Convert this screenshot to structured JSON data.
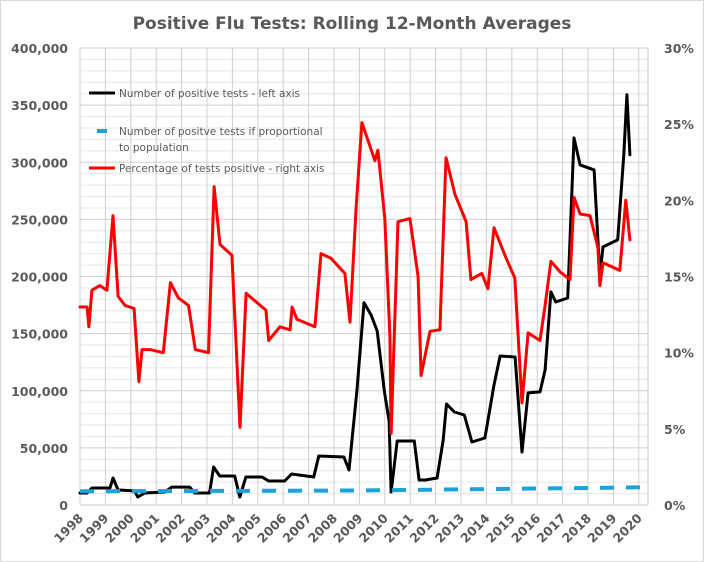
{
  "chart_data": {
    "type": "line",
    "title": "Positive Flu Tests: Rolling 12-Month Averages",
    "xlabel": "",
    "ylabel_left": "",
    "ylabel_right": "",
    "x_range": [
      1998,
      2020.35
    ],
    "y_left_range": [
      0,
      400000
    ],
    "y_right_range": [
      0,
      30
    ],
    "x_ticks": [
      "1998",
      "1999",
      "2000",
      "2001",
      "2002",
      "2003",
      "2004",
      "2005",
      "2006",
      "2007",
      "2008",
      "2009",
      "2010",
      "2011",
      "2012",
      "2013",
      "2014",
      "2015",
      "2016",
      "2017",
      "2018",
      "2019",
      "2020"
    ],
    "y_left_ticks": [
      "0",
      "50,000",
      "100,000",
      "150,000",
      "200,000",
      "250,000",
      "300,000",
      "350,000",
      "400,000"
    ],
    "y_left_tick_values": [
      0,
      50000,
      100000,
      150000,
      200000,
      250000,
      300000,
      350000,
      400000
    ],
    "y_right_ticks": [
      "0%",
      "5%",
      "10%",
      "15%",
      "20%",
      "25%",
      "30%"
    ],
    "y_right_tick_values": [
      0,
      5,
      10,
      15,
      20,
      25,
      30
    ],
    "grid": "major and minor",
    "legend_position": "top-left",
    "series": [
      {
        "name": "Number of positive tests - left axis",
        "axis": "left",
        "color": "#000000",
        "style": "solid",
        "points": [
          [
            1998.0,
            10500
          ],
          [
            1998.28,
            10500
          ],
          [
            1998.47,
            14900
          ],
          [
            1999.18,
            14900
          ],
          [
            1999.3,
            23600
          ],
          [
            1999.5,
            13100
          ],
          [
            2000.15,
            12300
          ],
          [
            2000.27,
            7000
          ],
          [
            2000.55,
            10500
          ],
          [
            2001.34,
            11400
          ],
          [
            2001.61,
            15700
          ],
          [
            2002.32,
            15700
          ],
          [
            2002.52,
            10500
          ],
          [
            2003.1,
            10500
          ],
          [
            2003.26,
            33300
          ],
          [
            2003.5,
            25400
          ],
          [
            2004.09,
            25400
          ],
          [
            2004.29,
            7000
          ],
          [
            2004.53,
            24500
          ],
          [
            2005.16,
            24500
          ],
          [
            2005.43,
            21000
          ],
          [
            2006.06,
            21000
          ],
          [
            2006.33,
            27100
          ],
          [
            2007.2,
            24500
          ],
          [
            2007.4,
            42900
          ],
          [
            2008.39,
            42000
          ],
          [
            2008.59,
            30600
          ],
          [
            2008.9,
            100000
          ],
          [
            2009.18,
            177000
          ],
          [
            2009.46,
            166300
          ],
          [
            2009.7,
            152300
          ],
          [
            2009.98,
            100000
          ],
          [
            2010.17,
            73500
          ],
          [
            2010.25,
            11400
          ],
          [
            2010.49,
            56000
          ],
          [
            2011.16,
            56000
          ],
          [
            2011.35,
            21900
          ],
          [
            2011.59,
            21900
          ],
          [
            2012.06,
            23600
          ],
          [
            2012.3,
            56900
          ],
          [
            2012.43,
            88400
          ],
          [
            2012.74,
            81400
          ],
          [
            2013.13,
            78800
          ],
          [
            2013.43,
            55100
          ],
          [
            2013.94,
            58600
          ],
          [
            2014.3,
            105000
          ],
          [
            2014.54,
            130400
          ],
          [
            2015.13,
            129500
          ],
          [
            2015.4,
            46400
          ],
          [
            2015.64,
            98100
          ],
          [
            2016.11,
            99000
          ],
          [
            2016.31,
            118200
          ],
          [
            2016.54,
            186500
          ],
          [
            2016.73,
            177700
          ],
          [
            2017.2,
            181200
          ],
          [
            2017.45,
            321300
          ],
          [
            2017.69,
            297700
          ],
          [
            2018.24,
            293300
          ],
          [
            2018.39,
            232100
          ],
          [
            2018.47,
            201400
          ],
          [
            2018.59,
            225900
          ],
          [
            2019.17,
            232100
          ],
          [
            2019.41,
            306500
          ],
          [
            2019.53,
            359000
          ],
          [
            2019.65,
            306500
          ]
        ]
      },
      {
        "name": "Number of positve tests if proportional to population",
        "axis": "left",
        "color": "#1AA3DB",
        "style": "dashed",
        "points": [
          [
            1998.0,
            12000
          ],
          [
            2009.0,
            12700
          ],
          [
            2020.3,
            15500
          ]
        ]
      },
      {
        "name": "Percentage of tests positive - right axis",
        "axis": "right",
        "color": "#FF0000",
        "style": "solid",
        "points": [
          [
            1998.0,
            13.0
          ],
          [
            1998.28,
            13.0
          ],
          [
            1998.35,
            11.7
          ],
          [
            1998.47,
            14.1
          ],
          [
            1998.78,
            14.4
          ],
          [
            1999.06,
            14.1
          ],
          [
            1999.3,
            19.0
          ],
          [
            1999.5,
            13.7
          ],
          [
            1999.77,
            13.1
          ],
          [
            2000.13,
            12.9
          ],
          [
            2000.32,
            8.1
          ],
          [
            2000.44,
            10.2
          ],
          [
            2000.76,
            10.2
          ],
          [
            2001.28,
            10.0
          ],
          [
            2001.56,
            14.6
          ],
          [
            2001.87,
            13.6
          ],
          [
            2002.27,
            13.1
          ],
          [
            2002.54,
            10.2
          ],
          [
            2003.06,
            10.0
          ],
          [
            2003.28,
            20.9
          ],
          [
            2003.51,
            17.1
          ],
          [
            2003.98,
            16.4
          ],
          [
            2004.3,
            5.1
          ],
          [
            2004.54,
            13.9
          ],
          [
            2005.17,
            13.0
          ],
          [
            2005.32,
            12.8
          ],
          [
            2005.43,
            10.8
          ],
          [
            2005.87,
            11.7
          ],
          [
            2006.27,
            11.5
          ],
          [
            2006.35,
            13.0
          ],
          [
            2006.54,
            12.2
          ],
          [
            2007.25,
            11.7
          ],
          [
            2007.49,
            16.5
          ],
          [
            2007.88,
            16.2
          ],
          [
            2008.43,
            15.2
          ],
          [
            2008.63,
            12.0
          ],
          [
            2008.87,
            19.5
          ],
          [
            2009.1,
            25.1
          ],
          [
            2009.61,
            22.6
          ],
          [
            2009.73,
            23.3
          ],
          [
            2010.0,
            18.8
          ],
          [
            2010.2,
            11.1
          ],
          [
            2010.25,
            4.7
          ],
          [
            2010.52,
            18.6
          ],
          [
            2010.99,
            18.8
          ],
          [
            2011.31,
            15.0
          ],
          [
            2011.43,
            8.5
          ],
          [
            2011.78,
            11.4
          ],
          [
            2012.17,
            11.5
          ],
          [
            2012.41,
            22.8
          ],
          [
            2012.76,
            20.4
          ],
          [
            2013.2,
            18.6
          ],
          [
            2013.39,
            14.8
          ],
          [
            2013.82,
            15.2
          ],
          [
            2014.06,
            14.2
          ],
          [
            2014.3,
            18.2
          ],
          [
            2014.73,
            16.4
          ],
          [
            2015.12,
            14.9
          ],
          [
            2015.4,
            6.7
          ],
          [
            2015.64,
            11.3
          ],
          [
            2016.11,
            10.8
          ],
          [
            2016.31,
            13.1
          ],
          [
            2016.54,
            16.0
          ],
          [
            2016.9,
            15.3
          ],
          [
            2017.29,
            14.8
          ],
          [
            2017.45,
            20.2
          ],
          [
            2017.69,
            19.1
          ],
          [
            2018.08,
            19.0
          ],
          [
            2018.39,
            16.9
          ],
          [
            2018.47,
            14.4
          ],
          [
            2018.59,
            15.9
          ],
          [
            2019.25,
            15.4
          ],
          [
            2019.49,
            20.0
          ],
          [
            2019.65,
            17.4
          ]
        ]
      }
    ]
  },
  "legend": [
    {
      "label_lines": [
        "Number of positive tests - left axis"
      ],
      "color": "#000000"
    },
    {
      "label_lines": [
        "Number of positve tests if proportional",
        "to population"
      ],
      "color": "#1AA3DB"
    },
    {
      "label_lines": [
        "Percentage of tests positive - right axis"
      ],
      "color": "#FF0000"
    }
  ]
}
